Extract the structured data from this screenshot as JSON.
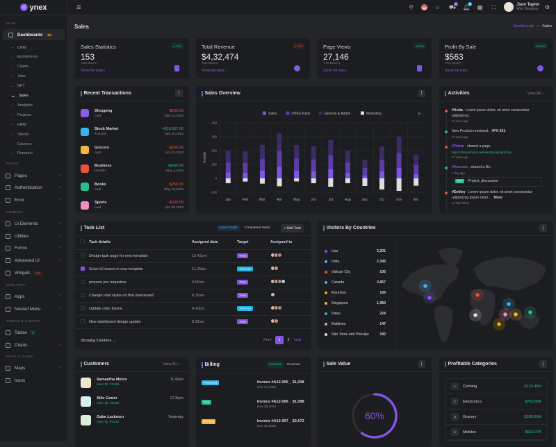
{
  "brand": "ynex",
  "sidebar": {
    "sections": [
      {
        "label": "MAIN",
        "items": [
          {
            "label": "Dashboards",
            "badge": "12",
            "active": true,
            "children": [
              "CRM",
              "Ecommerce",
              "Crypto",
              "Jobs",
              "NFT",
              "Sales",
              "Analytics",
              "Projects",
              "HRM",
              "Stocks",
              "Courses",
              "Personal"
            ],
            "current": "Sales"
          }
        ]
      },
      {
        "label": "PAGES",
        "items": [
          {
            "label": "Pages",
            "chev": true
          },
          {
            "label": "Authentication",
            "chev": true
          },
          {
            "label": "Error",
            "chev": true
          }
        ]
      },
      {
        "label": "GENERAL",
        "items": [
          {
            "label": "Ui Elements",
            "chev": true
          },
          {
            "label": "Utilities",
            "chev": true
          },
          {
            "label": "Forms",
            "chev": true
          },
          {
            "label": "Advanced Ui",
            "chev": true
          },
          {
            "label": "Widgets",
            "badge": "Hot"
          }
        ]
      },
      {
        "label": "WEB APPS",
        "items": [
          {
            "label": "Apps",
            "chev": true
          },
          {
            "label": "Nested Menu",
            "chev": true
          }
        ]
      },
      {
        "label": "TABLES & CHARTS",
        "items": [
          {
            "label": "Tables",
            "badge": "3"
          },
          {
            "label": "Charts",
            "chev": true
          }
        ]
      },
      {
        "label": "MAPS & ICONS",
        "items": [
          {
            "label": "Maps",
            "chev": true
          },
          {
            "label": "Icons"
          }
        ]
      }
    ]
  },
  "topbar": {
    "cart_count": "5",
    "notif_count": "5",
    "user_name": "Json Taylor",
    "user_role": "Web Designer"
  },
  "page": {
    "title": "Sales",
    "breadcrumb": [
      "Dashboards",
      "Sales"
    ]
  },
  "stats": [
    {
      "title": "Sales Statistics",
      "value": "153",
      "sub": "THIS MONTH",
      "link": "Show full stats",
      "change": "42%",
      "trend": "up"
    },
    {
      "title": "Total Revenue",
      "value": "$4,32,474",
      "sub": "THIS MONTH",
      "link": "Show full stats",
      "change": "12%",
      "trend": "down"
    },
    {
      "title": "Page Views",
      "value": "27,146",
      "sub": "THIS MONTH",
      "link": "Show full stats",
      "change": "27%",
      "trend": "up"
    },
    {
      "title": "Profit By Sale",
      "value": "$563",
      "sub": "THIS MONTH",
      "link": "Show full stats",
      "change": "32.5%",
      "trend": "up"
    }
  ],
  "transactions": {
    "title": "Recent Transactions",
    "items": [
      {
        "name": "Shopping",
        "type": "card",
        "amount": "-$256.99",
        "date": "Mar 12,2022",
        "color": "#8c5ae8"
      },
      {
        "name": "Stock Market",
        "type": "Transfer",
        "amount": "+$18,567.00",
        "date": "Mar 10,2022",
        "color": "#3cb3f0"
      },
      {
        "name": "Grocery",
        "type": "card",
        "amount": "-$256.99",
        "date": "Apr 23,2022",
        "color": "#f6b642"
      },
      {
        "name": "Business",
        "type": "transfer",
        "amount": "+$256.99",
        "date": "May 4,2022",
        "color": "#e9533c"
      },
      {
        "name": "Books",
        "type": "card",
        "amount": "-$256.99",
        "date": "May 18,2022",
        "color": "#26bf8d"
      },
      {
        "name": "Sports",
        "type": "card",
        "amount": "-$256.99",
        "date": "Apr 30,2022",
        "color": "#ef8fbf"
      }
    ]
  },
  "chart_data": {
    "type": "bar",
    "stacked": true,
    "title": "Sales Overview",
    "ylabel": "Growth",
    "ylim": [
      -100,
      400
    ],
    "yticks": [
      -100,
      0,
      100,
      200,
      300,
      400
    ],
    "grid": true,
    "legend": "top",
    "categories": [
      "Jan",
      "Feb",
      "Mar",
      "Apr",
      "May",
      "Jun",
      "Jul",
      "Aug",
      "sep",
      "oct",
      "nov",
      "dec"
    ],
    "series": [
      {
        "name": "Sales",
        "color": "#8453e6",
        "values": [
          44,
          40,
          55,
          85,
          55,
          52,
          68,
          42,
          22,
          52,
          75,
          32
        ]
      },
      {
        "name": "OPEX Ratio",
        "color": "#5c3ca5",
        "values": [
          72,
          72,
          87,
          115,
          90,
          85,
          100,
          73,
          53,
          83,
          105,
          65
        ]
      },
      {
        "name": "General & Admin",
        "color": "#3b2c63",
        "values": [
          84,
          83,
          98,
          125,
          95,
          95,
          110,
          82,
          60,
          95,
          120,
          73
        ]
      },
      {
        "name": "Marketing",
        "color": "#dedede",
        "values": [
          -35,
          -23,
          -38,
          -57,
          -22,
          -35,
          -60,
          -35,
          -55,
          -80,
          -90,
          -53
        ]
      }
    ]
  },
  "activities": {
    "title": "Activities",
    "view_all": "View All",
    "items": [
      {
        "user": "#Anita",
        "text": "Lorem ipsum dolor, sit amet consectetur adipisicing .",
        "time": "12 mins ago.",
        "dot": "#e9533c"
      },
      {
        "user": "",
        "text": "New Product reveiwed.",
        "tag": "#FX-321",
        "time": "28 mins ago.",
        "dot": "#26bf8d"
      },
      {
        "user": "#Zlatan",
        "text": "shared a page.",
        "link": "https://themeforest.net/user/spruko/portfolio",
        "time": "37 mins ago.",
        "dot": "#e9533c"
      },
      {
        "user": "#Hussain",
        "text": "shared a file.",
        "time": "1 day ago.",
        "file_tag": "PPT",
        "file": "Project_discussion",
        "dot": "#26bf8d"
      },
      {
        "user": "#Emiley",
        "text": "Lorem ipsum dolor, sit amet consectetur adipisicing ipsum dolor...",
        "more": "More",
        "time": "14 Mar 2022.",
        "dot": "#e9533c"
      }
    ]
  },
  "tasks": {
    "title": "Task List",
    "tabs": [
      "Active Tasks",
      "Completed Tasks"
    ],
    "add": "+ Add Task",
    "columns": [
      "Task details",
      "Assigned date",
      "Target",
      "Assigned to"
    ],
    "rows": [
      {
        "task": "Design task page for new template",
        "date": "12.43pm",
        "target": "Today",
        "avatars": 3,
        "checked": false
      },
      {
        "task": "Solve UI issues in new template",
        "date": "11.25am",
        "target": "Tomorrow",
        "avatars": 2,
        "checked": true
      },
      {
        "task": "prepare pre requisites",
        "date": "9.56am",
        "target": "Today",
        "avatars": 4,
        "checked": false
      },
      {
        "task": "Change total styles od that dashboard",
        "date": "8.15am",
        "target": "Today",
        "avatars": 1,
        "checked": false
      },
      {
        "task": "Update color theme",
        "date": "4.20pm",
        "target": "Tomorrow",
        "avatars": 3,
        "checked": false
      },
      {
        "task": "New dashboard design update",
        "date": "8.29am",
        "target": "Today",
        "avatars": 2,
        "checked": false
      }
    ],
    "footer": "Showing 5 Entries",
    "prev": "Prev",
    "pages": [
      "1",
      "2"
    ],
    "next": "next"
  },
  "visitors": {
    "title": "Visitors By Countries",
    "items": [
      {
        "country": "Usa",
        "count": "3,201",
        "color": "#8453e6"
      },
      {
        "country": "India",
        "count": "2,345",
        "color": "#3cb3f0"
      },
      {
        "country": "Vatican City",
        "count": "106",
        "color": "#e9533c"
      },
      {
        "country": "Canada",
        "count": "2,857",
        "color": "#3cb3f0"
      },
      {
        "country": "Mauritius",
        "count": "169",
        "color": "#f5a30c"
      },
      {
        "country": "Singapore",
        "count": "1,950",
        "color": "#f6b642"
      },
      {
        "country": "Palau",
        "count": "224",
        "color": "#26bf8d"
      },
      {
        "country": "Maldives",
        "count": "147",
        "color": "#ef8fbf"
      },
      {
        "country": "São Tomé and Príncipe",
        "count": "182",
        "color": "#dddddd"
      }
    ]
  },
  "customers": {
    "title": "Customers",
    "view_all": "View All",
    "items": [
      {
        "name": "Samantha Melon",
        "id": "User ID: #1234",
        "time": "11.43am"
      },
      {
        "name": "Allie Grater",
        "id": "User ID: #3432",
        "time": "12.35pm"
      },
      {
        "name": "Gabe Lackmen",
        "id": "User ID: #2312",
        "time": "Yesterday"
      }
    ]
  },
  "billing": {
    "title": "Billing",
    "tabs": [
      "Invoices",
      "Revenue"
    ],
    "items": [
      {
        "status": "Processing",
        "color": "#3cb3f0",
        "invoice": "Invoice #A12-005 _ $1,938",
        "date": "Nov 24,2022"
      },
      {
        "status": "Sent",
        "color": "#26bf8d",
        "invoice": "Invoice #A12-006 _ $1,098",
        "date": "Nov 28,2022"
      },
      {
        "status": "Pending",
        "color": "#f6b642",
        "invoice": "Invoice #A12-007 _ $3,672",
        "date": "Dec 20,2022"
      }
    ]
  },
  "sale_value": {
    "title": "Sale Value",
    "percent": 60,
    "label": "60%"
  },
  "categories": {
    "title": "Profitable Categories",
    "items": [
      {
        "rank": "1",
        "name": "Clothing",
        "value": "$123.45M"
      },
      {
        "rank": "2",
        "name": "Electronics",
        "value": "$765.89K"
      },
      {
        "rank": "3",
        "name": "Grocery",
        "value": "$289.00M"
      },
      {
        "rank": "4",
        "name": "Mobiles",
        "value": "$662.97K"
      }
    ]
  },
  "colors": {
    "accent": "#8453e6",
    "success": "#26bf8d",
    "danger": "#e9533c",
    "bg": "#242528",
    "card": "#1c1d20"
  }
}
